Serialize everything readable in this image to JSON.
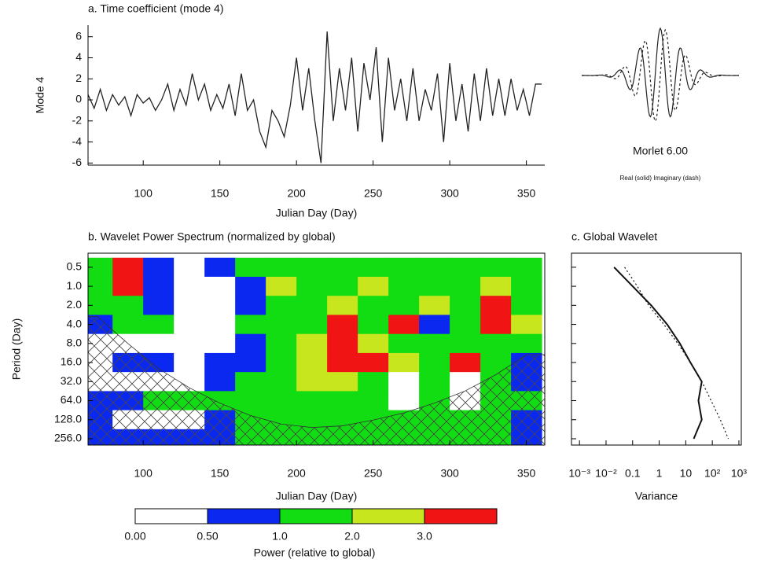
{
  "chart_data": [
    {
      "type": "line",
      "title": "a. Time coefficient (mode 4)",
      "y_label": "Mode 4",
      "x_label": "Julian Day (Day)",
      "x": [
        64,
        68,
        72,
        76,
        80,
        84,
        88,
        92,
        96,
        100,
        104,
        108,
        112,
        116,
        120,
        124,
        128,
        132,
        136,
        140,
        144,
        148,
        152,
        156,
        160,
        164,
        168,
        172,
        176,
        180,
        184,
        188,
        192,
        196,
        200,
        204,
        208,
        212,
        216,
        220,
        224,
        228,
        232,
        236,
        240,
        244,
        248,
        252,
        256,
        260,
        264,
        268,
        272,
        276,
        280,
        284,
        288,
        292,
        296,
        300,
        304,
        308,
        312,
        316,
        320,
        324,
        328,
        332,
        336,
        340,
        344,
        348,
        352,
        356,
        360
      ],
      "series": [
        {
          "color": "#222222",
          "values": [
            0.5,
            -0.8,
            1,
            -1,
            0.5,
            -0.5,
            0.3,
            -1.5,
            0.5,
            -0.3,
            0.2,
            -1,
            0,
            1.5,
            -1,
            1,
            -0.5,
            2.5,
            0,
            1.5,
            -1,
            0.5,
            -0.8,
            1.5,
            -1.5,
            2.5,
            -1,
            0,
            -3,
            -4.5,
            -1,
            -2,
            -3.5,
            -0.5,
            4,
            -1,
            3,
            -2,
            -6,
            6.5,
            -2,
            3,
            -1,
            4,
            -3,
            3.5,
            0,
            5,
            -4,
            4,
            -1,
            2,
            -2,
            3,
            -2,
            1,
            -1,
            2.5,
            -4,
            3.5,
            -2,
            1.5,
            -3,
            2.5,
            -2,
            3,
            -1.5,
            2,
            -1.5,
            2,
            -1,
            1,
            -1.5,
            1.5,
            1.5
          ]
        }
      ],
      "xlim": [
        64,
        362
      ],
      "xticks": [
        100,
        150,
        200,
        250,
        300,
        350
      ],
      "ylim": [
        -6.2,
        7.1
      ],
      "yticks": [
        -6,
        -4,
        -2,
        0,
        2,
        4,
        6
      ]
    },
    {
      "type": "heatmap",
      "title": "b. Wavelet Power Spectrum (normalized by global)",
      "y_label": "Period (Day)",
      "x_label": "Julian Day (Day)",
      "x": [
        70,
        90,
        110,
        130,
        150,
        170,
        190,
        210,
        230,
        250,
        270,
        290,
        310,
        330,
        350
      ],
      "y": [
        0.5,
        1,
        2,
        4,
        8,
        16,
        32,
        64,
        128,
        256
      ],
      "values": [
        [
          1.5,
          3.5,
          0.5,
          0.2,
          0.6,
          1.5,
          1.2,
          1.0,
          1.5,
          1.5,
          1.2,
          1.5,
          1.2,
          1.5,
          1.5
        ],
        [
          1.2,
          3.5,
          0.6,
          0.2,
          0.3,
          0.8,
          2.5,
          1.5,
          1.5,
          2.5,
          1.5,
          1.5,
          1.2,
          2.5,
          1.5
        ],
        [
          1.2,
          1.5,
          0.8,
          0.2,
          0.2,
          0.6,
          1.2,
          1.5,
          2.5,
          1.5,
          1.2,
          2.5,
          1.5,
          3.5,
          1.5
        ],
        [
          0.7,
          1.5,
          1.5,
          0.2,
          0.2,
          1.2,
          1.5,
          1.5,
          3.5,
          1.2,
          3.5,
          0.6,
          1.5,
          3.5,
          2.5
        ],
        [
          0.2,
          0.3,
          0.2,
          0.3,
          0.3,
          0.8,
          1.5,
          2.5,
          3.5,
          2.5,
          1.5,
          1.2,
          1.5,
          1.2,
          1.5
        ],
        [
          0.2,
          0.6,
          0.6,
          0.3,
          0.6,
          0.6,
          1.2,
          2.5,
          3.5,
          3.5,
          2.5,
          1.5,
          3.5,
          1.2,
          0.6
        ],
        [
          0.2,
          0.2,
          0.2,
          0.3,
          0.6,
          1.2,
          1.5,
          2.5,
          2.5,
          1.2,
          0.2,
          1.2,
          0.2,
          1.2,
          0.6
        ],
        [
          0.6,
          0.6,
          1.2,
          1.2,
          1.5,
          1.2,
          1.5,
          1.5,
          1.2,
          1.2,
          0.2,
          1.2,
          0.2,
          1.2,
          1.2
        ],
        [
          0.6,
          0.2,
          0.2,
          0.2,
          0.6,
          1.2,
          1.2,
          1.2,
          1.2,
          1.2,
          1.2,
          1.2,
          1.2,
          1.2,
          0.6
        ],
        [
          0.6,
          0.6,
          0.6,
          0.6,
          0.6,
          1.2,
          1.2,
          1.2,
          1.2,
          1.2,
          1.2,
          1.2,
          1.2,
          1.2,
          0.6
        ]
      ],
      "coi": [
        3,
        8,
        20,
        40,
        70,
        110,
        150,
        170,
        160,
        130,
        100,
        70,
        45,
        25,
        12
      ],
      "xlim": [
        64,
        362
      ],
      "xticks": [
        100,
        150,
        200,
        250,
        300,
        350
      ],
      "ylim": [
        0.3,
        322
      ],
      "yticks": [
        {
          "value": 0.5,
          "label": "0.5"
        },
        {
          "value": 1,
          "label": "1.0"
        },
        {
          "value": 2,
          "label": "2.0"
        },
        {
          "value": 4,
          "label": "4.0"
        },
        {
          "value": 8,
          "label": "8.0"
        },
        {
          "value": 16,
          "label": "16.0"
        },
        {
          "value": 32,
          "label": "32.0"
        },
        {
          "value": 64,
          "label": "64.0"
        },
        {
          "value": 128,
          "label": "128.0"
        },
        {
          "value": 256,
          "label": "256.0"
        }
      ],
      "levels": [
        {
          "value": 0,
          "label": "0.00"
        },
        {
          "value": 0.5,
          "label": "0.50"
        },
        {
          "value": 1,
          "label": "1.0"
        },
        {
          "value": 2,
          "label": "2.0"
        },
        {
          "value": 3,
          "label": "3.0"
        }
      ],
      "colors": [
        "#ffffff",
        "#0a28f0",
        "#12dc12",
        "#c8e61e",
        "#f01414"
      ],
      "colorbar_label": "Power (relative to global)"
    },
    {
      "type": "line",
      "title": "c. Global Wavelet",
      "x_label": "Variance",
      "log_x": true,
      "y": [
        0.5,
        1,
        2,
        4,
        8,
        16,
        32,
        64,
        128,
        256
      ],
      "series": [
        {
          "color": "#111111",
          "style": "solid",
          "values": [
            0.02,
            0.1,
            0.5,
            2,
            6,
            15,
            40,
            30,
            40,
            20
          ]
        },
        {
          "color": "#111111",
          "style": "dotted",
          "values": [
            0.05,
            0.15,
            0.4,
            1.5,
            5,
            15,
            40,
            90,
            200,
            400
          ]
        }
      ],
      "xlim": [
        0.0005,
        1230
      ],
      "xticks": [
        {
          "value": 0.001,
          "label": "10⁻³"
        },
        {
          "value": 0.01,
          "label": "10⁻²"
        },
        0.1,
        1,
        10,
        {
          "value": 100,
          "label": "10²"
        },
        {
          "value": 1000,
          "label": "10³"
        }
      ],
      "ylim": [
        0.3,
        322
      ],
      "yticks": [
        0.5,
        1,
        2,
        4,
        8,
        16,
        32,
        64,
        128,
        256
      ]
    }
  ],
  "morlet": {
    "title": "Morlet 6.00",
    "caption": "Real (solid)  Imaginary (dash)"
  }
}
